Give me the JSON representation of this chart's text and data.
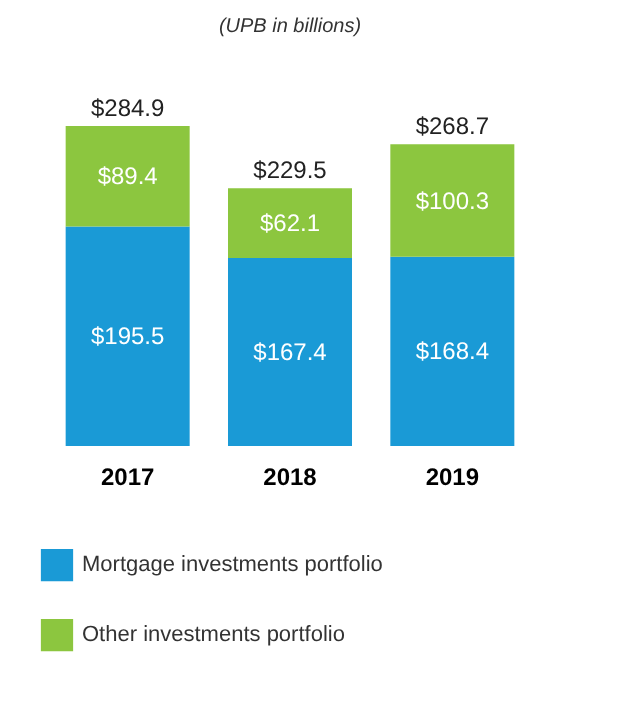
{
  "chart_data": {
    "type": "bar",
    "stacked": true,
    "annotations": [
      "(UPB in billions)"
    ],
    "categories": [
      "2017",
      "2018",
      "2019"
    ],
    "series": [
      {
        "name": "Mortgage investments portfolio",
        "color": "#1a9ad6",
        "values": [
          195.5,
          167.4,
          168.4
        ],
        "value_labels": [
          "$195.5",
          "$167.4",
          "$168.4"
        ]
      },
      {
        "name": "Other investments portfolio",
        "color": "#8cc63f",
        "values": [
          89.4,
          62.1,
          100.3
        ],
        "value_labels": [
          "$89.4",
          "$62.1",
          "$100.3"
        ]
      }
    ],
    "totals": [
      "$284.9",
      "$229.5",
      "$268.7"
    ],
    "legend": "bottom",
    "grid": false
  }
}
